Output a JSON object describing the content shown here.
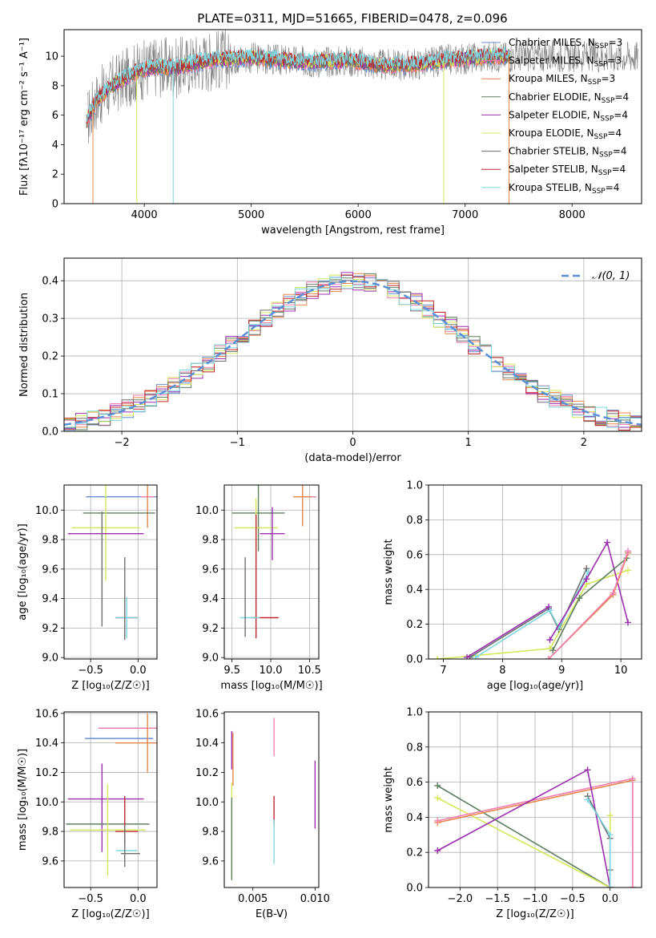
{
  "page_title": "PLATE=0311, MJD=51665, FIBERID=0478, z=0.096",
  "colors": {
    "chabrier_miles": "#6a8fd0",
    "salpeter_miles": "#f27fb2",
    "kroupa_miles": "#e8854a",
    "chabrier_elodie": "#5f8060",
    "salpeter_elodie": "#9b2fae",
    "kroupa_elodie": "#d4e85a",
    "chabrier_stelib": "#6e6e6e",
    "salpeter_stelib": "#c0272d",
    "kroupa_stelib": "#7fd7e0",
    "normal_curve": "#5b8fd6"
  },
  "chart_data": [
    {
      "id": "spectrum",
      "type": "line",
      "title": "PLATE=0311, MJD=51665, FIBERID=0478, z=0.096",
      "xlabel": "wavelength [Angstrom, rest frame]",
      "ylabel": "Flux [fλ10⁻¹⁷ erg cm⁻² s⁻¹ A⁻¹]",
      "xlim": [
        3250,
        8650
      ],
      "ylim": [
        0,
        11.8
      ],
      "xticks": [
        "4000",
        "5000",
        "6000",
        "7000",
        "8000"
      ],
      "yticks": [
        "0",
        "2",
        "4",
        "6",
        "8",
        "10"
      ],
      "grid": false,
      "legend_position": "top-right",
      "legend": [
        {
          "label": "Chabrier MILES, N",
          "sub": "SSP",
          "suffix": "=3",
          "color_key": "chabrier_miles"
        },
        {
          "label": "Salpeter MILES, N",
          "sub": "SSP",
          "suffix": "=3",
          "color_key": "salpeter_miles"
        },
        {
          "label": "Kroupa MILES, N",
          "sub": "SSP",
          "suffix": "=3",
          "color_key": "kroupa_miles"
        },
        {
          "label": "Chabrier ELODIE, N",
          "sub": "SSP",
          "suffix": "=4",
          "color_key": "chabrier_elodie"
        },
        {
          "label": "Salpeter ELODIE, N",
          "sub": "SSP",
          "suffix": "=4",
          "color_key": "salpeter_elodie"
        },
        {
          "label": "Kroupa ELODIE, N",
          "sub": "SSP",
          "suffix": "=4",
          "color_key": "kroupa_elodie"
        },
        {
          "label": "Chabrier STELIB, N",
          "sub": "SSP",
          "suffix": "=4",
          "color_key": "chabrier_stelib"
        },
        {
          "label": "Salpeter STELIB, N",
          "sub": "SSP",
          "suffix": "=4",
          "color_key": "salpeter_stelib"
        },
        {
          "label": "Kroupa STELIB, N",
          "sub": "SSP",
          "suffix": "=4",
          "color_key": "kroupa_stelib"
        }
      ],
      "continuum": [
        [
          3460,
          5.6
        ],
        [
          3550,
          7.0
        ],
        [
          3700,
          8.0
        ],
        [
          3850,
          8.6
        ],
        [
          3950,
          9.0
        ],
        [
          4100,
          9.3
        ],
        [
          4300,
          9.2
        ],
        [
          4500,
          9.6
        ],
        [
          4700,
          9.8
        ],
        [
          5000,
          9.9
        ],
        [
          5300,
          9.7
        ],
        [
          5600,
          9.6
        ],
        [
          5900,
          9.7
        ],
        [
          6200,
          9.4
        ],
        [
          6500,
          9.4
        ],
        [
          6800,
          9.7
        ],
        [
          7100,
          9.9
        ],
        [
          7400,
          10.0
        ]
      ],
      "model_range": [
        3460,
        7420
      ],
      "data_range": [
        3470,
        8620
      ]
    },
    {
      "id": "residuals",
      "type": "line",
      "xlabel": "(data-model)/error",
      "ylabel": "Normed distribution",
      "xlim": [
        -2.5,
        2.5
      ],
      "ylim": [
        0,
        0.46
      ],
      "xticks": [
        "−2",
        "−1",
        "0",
        "1",
        "2"
      ],
      "yticks": [
        "0.0",
        "0.1",
        "0.2",
        "0.3",
        "0.4"
      ],
      "grid": true,
      "legend_position": "top-right",
      "legend": [
        {
          "label": "𝒩(0, 1)",
          "color_key": "normal_curve"
        }
      ],
      "bins": {
        "start": -2.5,
        "width": 0.1,
        "count": 50
      }
    },
    {
      "id": "age_vs_z",
      "type": "scatter",
      "xlabel": "Z [log₁₀(Z/Z☉)]",
      "ylabel": "age  [log₁₀(age/yr)]",
      "xlim": [
        -0.78,
        0.2
      ],
      "ylim": [
        8.99,
        10.17
      ],
      "xticks": [
        "−0.5",
        "0.0"
      ],
      "yticks": [
        "9.0",
        "9.2",
        "9.4",
        "9.6",
        "9.8",
        "10.0"
      ],
      "grid": true,
      "series": [
        {
          "color_key": "chabrier_miles",
          "x": 0.0,
          "y": 10.09,
          "xerr": 0.55,
          "yerr": 0.0
        },
        {
          "color_key": "kroupa_miles",
          "x": 0.1,
          "y": 10.09,
          "xerr": 0.07,
          "yerr": 0.21
        },
        {
          "color_key": "salpeter_miles",
          "x": 0.1,
          "y": 10.09,
          "xerr": 0.07,
          "yerr": 0.0
        },
        {
          "color_key": "chabrier_elodie",
          "x": -0.2,
          "y": 9.98,
          "xerr": 0.38,
          "yerr": 0.0
        },
        {
          "color_key": "kroupa_elodie",
          "x": -0.34,
          "y": 9.88,
          "xerr": 0.36,
          "yerr": 0.36
        },
        {
          "color_key": "salpeter_elodie",
          "x": -0.34,
          "y": 9.84,
          "xerr": 0.4,
          "yerr": 0.0
        },
        {
          "color_key": "chabrier_stelib",
          "x": -0.38,
          "y": 9.6,
          "xerr": 0.0,
          "yerr": 0.39
        },
        {
          "color_key": "salpeter_stelib",
          "x": -0.12,
          "y": 9.27,
          "xerr": 0.12,
          "yerr": 0.0
        },
        {
          "color_key": "kroupa_stelib",
          "x": -0.12,
          "y": 9.27,
          "xerr": 0.12,
          "yerr": 0.14
        },
        {
          "color_key": "chabrier_stelib",
          "x": -0.14,
          "y": 9.4,
          "xerr": 0.0,
          "yerr": 0.28
        }
      ]
    },
    {
      "id": "age_vs_mass",
      "type": "scatter",
      "xlabel": "mass [log₁₀(M/M☉)]",
      "ylabel": "",
      "xlim": [
        9.4,
        10.62
      ],
      "ylim": [
        8.99,
        10.17
      ],
      "xticks": [
        "9.5",
        "10.0",
        "10.5"
      ],
      "yticks": [
        "9.0",
        "9.2",
        "9.4",
        "9.6",
        "9.8",
        "10.0"
      ],
      "grid": true,
      "series": [
        {
          "color_key": "salpeter_miles",
          "x": 10.49,
          "y": 10.09,
          "xerr": 0.1,
          "yerr": 0.0
        },
        {
          "color_key": "kroupa_miles",
          "x": 10.41,
          "y": 10.09,
          "xerr": 0.12,
          "yerr": 0.2
        },
        {
          "color_key": "chabrier_miles",
          "x": 10.43,
          "y": 10.09,
          "xerr": 0.0,
          "yerr": 0.0
        },
        {
          "color_key": "chabrier_elodie",
          "x": 9.84,
          "y": 9.98,
          "xerr": 0.34,
          "yerr": 0.26
        },
        {
          "color_key": "kroupa_elodie",
          "x": 9.81,
          "y": 9.88,
          "xerr": 0.28,
          "yerr": 0.2
        },
        {
          "color_key": "salpeter_elodie",
          "x": 10.02,
          "y": 9.84,
          "xerr": 0.16,
          "yerr": 0.18
        },
        {
          "color_key": "salpeter_stelib",
          "x": 9.92,
          "y": 9.27,
          "xerr": 0.18,
          "yerr": 0.0
        },
        {
          "color_key": "salpeter_stelib",
          "x": 9.81,
          "y": 9.55,
          "xerr": 0.0,
          "yerr": 0.42
        },
        {
          "color_key": "kroupa_stelib",
          "x": 9.73,
          "y": 9.27,
          "xerr": 0.13,
          "yerr": 0.0
        },
        {
          "color_key": "chabrier_stelib",
          "x": 9.67,
          "y": 9.41,
          "xerr": 0.0,
          "yerr": 0.27
        }
      ]
    },
    {
      "id": "weight_vs_age",
      "type": "line",
      "xlabel": "age  [log₁₀(age/yr)]",
      "ylabel": "mass weight",
      "xlim": [
        6.75,
        10.35
      ],
      "ylim": [
        0,
        1.0
      ],
      "xticks": [
        "7",
        "8",
        "9",
        "10"
      ],
      "yticks": [
        "0.0",
        "0.2",
        "0.4",
        "0.6",
        "0.8",
        "1.0"
      ],
      "grid": true,
      "series": [
        {
          "color_key": "kroupa_elodie",
          "x": [
            6.9,
            8.8,
            9.42,
            10.12
          ],
          "y": [
            0.0,
            0.06,
            0.43,
            0.51
          ]
        },
        {
          "color_key": "chabrier_stelib",
          "x": [
            7.45,
            8.78,
            8.95,
            9.42
          ],
          "y": [
            0.01,
            0.29,
            0.17,
            0.52
          ]
        },
        {
          "color_key": "kroupa_stelib",
          "x": [
            7.55,
            8.8,
            8.95,
            9.45
          ],
          "y": [
            0.01,
            0.28,
            0.18,
            0.5
          ]
        },
        {
          "color_key": "salpeter_elodie",
          "x": [
            8.8,
            9.42,
            9.77,
            10.12
          ],
          "y": [
            0.11,
            0.46,
            0.67,
            0.21
          ]
        },
        {
          "color_key": "salpeter_elodie",
          "x": [
            7.4,
            8.78
          ],
          "y": [
            0.01,
            0.3
          ]
        },
        {
          "color_key": "chabrier_elodie",
          "x": [
            8.85,
            9.3,
            10.1
          ],
          "y": [
            0.05,
            0.35,
            0.58
          ]
        },
        {
          "color_key": "kroupa_miles",
          "x": [
            8.78,
            9.87,
            10.12
          ],
          "y": [
            0.0,
            0.37,
            0.61
          ]
        },
        {
          "color_key": "salpeter_miles",
          "x": [
            8.78,
            9.87,
            10.12
          ],
          "y": [
            0.0,
            0.38,
            0.62
          ]
        }
      ]
    },
    {
      "id": "mass_vs_z",
      "type": "scatter",
      "xlabel": "Z [log₁₀(Z/Z☉)]",
      "ylabel": "mass [log₁₀(M/M☉)]",
      "xlim": [
        -0.78,
        0.2
      ],
      "ylim": [
        9.42,
        10.61
      ],
      "xticks": [
        "−0.5",
        "0.0"
      ],
      "yticks": [
        "9.6",
        "9.8",
        "10.0",
        "10.2",
        "10.4",
        "10.6"
      ],
      "grid": true,
      "series": [
        {
          "color_key": "salpeter_miles",
          "x": 0.0,
          "y": 10.5,
          "xerr": 0.42,
          "yerr": 0.0
        },
        {
          "color_key": "chabrier_miles",
          "x": -0.2,
          "y": 10.43,
          "xerr": 0.36,
          "yerr": 0.0
        },
        {
          "color_key": "kroupa_miles",
          "x": 0.1,
          "y": 10.4,
          "xerr": 0.34,
          "yerr": 0.2
        },
        {
          "color_key": "salpeter_elodie",
          "x": -0.34,
          "y": 10.02,
          "xerr": 0.4,
          "yerr": 0.0
        },
        {
          "color_key": "salpeter_elodie",
          "x": -0.38,
          "y": 9.96,
          "xerr": 0.0,
          "yerr": 0.3
        },
        {
          "color_key": "chabrier_elodie",
          "x": -0.32,
          "y": 9.85,
          "xerr": 0.44,
          "yerr": 0.0
        },
        {
          "color_key": "kroupa_elodie",
          "x": -0.32,
          "y": 9.81,
          "xerr": 0.4,
          "yerr": 0.31
        },
        {
          "color_key": "salpeter_stelib",
          "x": -0.12,
          "y": 9.8,
          "xerr": 0.12,
          "yerr": 0.0
        },
        {
          "color_key": "salpeter_stelib",
          "x": -0.14,
          "y": 9.88,
          "xerr": 0.0,
          "yerr": 0.16
        },
        {
          "color_key": "kroupa_stelib",
          "x": -0.12,
          "y": 9.67,
          "xerr": 0.11,
          "yerr": 0.0
        },
        {
          "color_key": "chabrier_stelib",
          "x": -0.08,
          "y": 9.65,
          "xerr": 0.1,
          "yerr": 0.0
        },
        {
          "color_key": "chabrier_stelib",
          "x": -0.14,
          "y": 9.7,
          "xerr": 0.0,
          "yerr": 0.14
        }
      ]
    },
    {
      "id": "mass_vs_ebv",
      "type": "scatter",
      "xlabel": "E(B-V)",
      "ylabel": "",
      "xlim": [
        0.0027,
        0.0103
      ],
      "ylim": [
        9.42,
        10.61
      ],
      "xticks": [
        "0.005",
        "0.010"
      ],
      "yticks": [
        "9.6",
        "9.8",
        "10.0",
        "10.2",
        "10.4",
        "10.6"
      ],
      "grid": false,
      "series": [
        {
          "color_key": "salpeter_miles",
          "x": 0.0067,
          "y": 10.44,
          "xerr": 0.0,
          "yerr": 0.13
        },
        {
          "color_key": "salpeter_elodie",
          "x": 0.0033,
          "y": 10.35,
          "xerr": 0.0,
          "yerr": 0.13
        },
        {
          "color_key": "kroupa_miles",
          "x": 0.0034,
          "y": 10.29,
          "xerr": 0.0,
          "yerr": 0.18
        },
        {
          "color_key": "kroupa_elodie",
          "x": 0.0033,
          "y": 9.8,
          "xerr": 0.0,
          "yerr": 0.33
        },
        {
          "color_key": "chabrier_elodie",
          "x": 0.0033,
          "y": 9.75,
          "xerr": 0.0,
          "yerr": 0.28
        },
        {
          "color_key": "salpeter_elodie",
          "x": 0.01,
          "y": 10.05,
          "xerr": 0.0,
          "yerr": 0.23
        },
        {
          "color_key": "salpeter_stelib",
          "x": 0.0067,
          "y": 9.94,
          "xerr": 0.0,
          "yerr": 0.1
        },
        {
          "color_key": "kroupa_stelib",
          "x": 0.0067,
          "y": 9.73,
          "xerr": 0.0,
          "yerr": 0.15
        }
      ]
    },
    {
      "id": "weight_vs_z",
      "type": "line",
      "xlabel": "Z [log₁₀(Z/Z☉)]",
      "ylabel": "mass weight",
      "xlim": [
        -2.42,
        0.42
      ],
      "ylim": [
        0,
        1.0
      ],
      "xticks": [
        "−2.0",
        "−1.5",
        "−1.0",
        "−0.5",
        "0.0"
      ],
      "yticks": [
        "0.0",
        "0.2",
        "0.4",
        "0.6",
        "0.8",
        "1.0"
      ],
      "grid": true,
      "series": [
        {
          "color_key": "chabrier_elodie",
          "x": [
            -2.3,
            0.0,
            0.0
          ],
          "y": [
            0.58,
            0.0,
            0.1
          ]
        },
        {
          "color_key": "kroupa_elodie",
          "x": [
            -2.3,
            0.0,
            0.0
          ],
          "y": [
            0.51,
            0.0,
            0.41
          ]
        },
        {
          "color_key": "kroupa_miles",
          "x": [
            -2.3,
            0.3,
            0.3
          ],
          "y": [
            0.37,
            0.61,
            0.0
          ]
        },
        {
          "color_key": "salpeter_miles",
          "x": [
            -2.3,
            0.3,
            0.3
          ],
          "y": [
            0.38,
            0.62,
            0.0
          ]
        },
        {
          "color_key": "salpeter_elodie",
          "x": [
            -2.3,
            -0.3,
            0.0
          ],
          "y": [
            0.21,
            0.67,
            0.0
          ]
        },
        {
          "color_key": "chabrier_stelib",
          "x": [
            -0.3,
            0.0,
            0.0
          ],
          "y": [
            0.52,
            0.28,
            0.0
          ]
        },
        {
          "color_key": "kroupa_stelib",
          "x": [
            -0.3,
            0.0,
            0.0
          ],
          "y": [
            0.5,
            0.3,
            0.0
          ]
        }
      ]
    }
  ]
}
